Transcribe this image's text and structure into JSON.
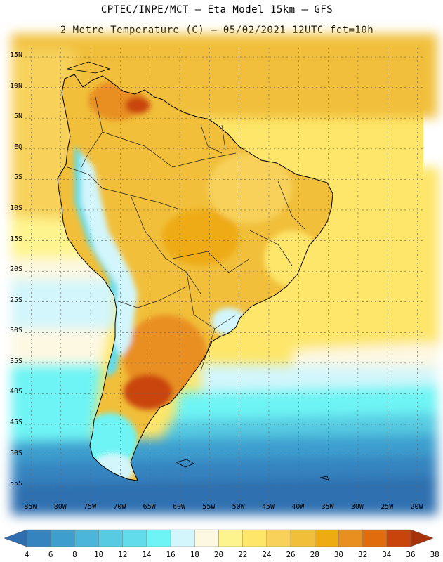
{
  "header": {
    "line1": "CPTEC/INPE/MCT –  Eta Model 15km – GFS",
    "line2": "2 Metre Temperature (C) – 05/02/2021 12UTC fct=10h"
  },
  "map": {
    "lat_labels": [
      "15N",
      "10N",
      "5N",
      "EQ",
      "5S",
      "10S",
      "15S",
      "20S",
      "25S",
      "30S",
      "35S",
      "40S",
      "45S",
      "50S",
      "55S"
    ],
    "lat_values": [
      15,
      10,
      5,
      0,
      -5,
      -10,
      -15,
      -20,
      -25,
      -30,
      -35,
      -40,
      -45,
      -50,
      -55
    ],
    "lon_labels": [
      "85W",
      "80W",
      "75W",
      "70W",
      "65W",
      "60W",
      "55W",
      "50W",
      "45W",
      "40W",
      "35W",
      "30W",
      "25W",
      "20W"
    ],
    "lon_values": [
      -85,
      -80,
      -75,
      -70,
      -65,
      -60,
      -55,
      -50,
      -45,
      -40,
      -35,
      -30,
      -25,
      -20
    ],
    "lon_range": [
      -86,
      -19
    ],
    "lat_range": [
      -57.5,
      16.5
    ]
  },
  "colorbar": {
    "labels": [
      "4",
      "6",
      "8",
      "10",
      "12",
      "14",
      "16",
      "18",
      "20",
      "22",
      "24",
      "26",
      "28",
      "30",
      "32",
      "34",
      "36",
      "38"
    ],
    "colors": [
      "#2f6fb0",
      "#3584c0",
      "#3e9fcf",
      "#4cb6da",
      "#57cbe2",
      "#62dcea",
      "#6ef4f4",
      "#d2f6fb",
      "#fdf8e2",
      "#fef48e",
      "#fde66a",
      "#f7d15a",
      "#f1bf3a",
      "#eeab12",
      "#e98f20",
      "#e06c0e",
      "#c9440a",
      "#a8330a"
    ]
  }
}
